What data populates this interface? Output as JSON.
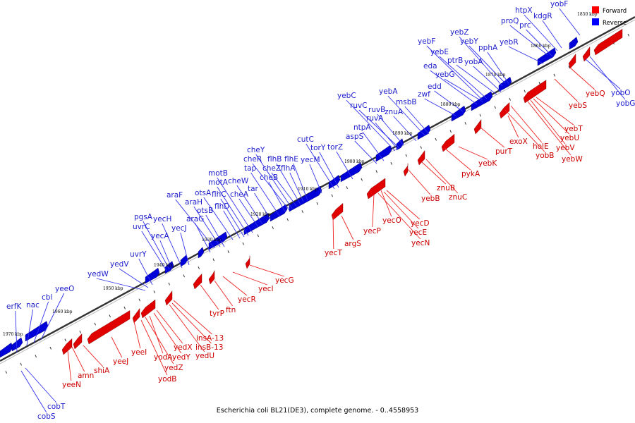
{
  "caption": "Escherichia coli BL21(DE3), complete genome. - 0..4558953",
  "legend": {
    "forward_label": "Forward",
    "reverse_label": "Reverse",
    "forward_color": "#ff0000",
    "reverse_color": "#0000ff"
  },
  "colors": {
    "forward": "#e00000",
    "reverse": "#0000d8",
    "label_forward": "#cc0000",
    "label_reverse": "#1c1ccc"
  },
  "kbp_labels": [
    "1850 kbp",
    "1860 kbp",
    "1870 kbp",
    "1880 kbp",
    "1890 kbp",
    "1900 kbp",
    "1910 kbp",
    "1920 kbp",
    "1930 kbp",
    "1940 kbp",
    "1950 kbp",
    "1960 kbp",
    "1970 kbp"
  ],
  "reverse_genes": [
    "yobF",
    "htpX",
    "kdgR",
    "proQ",
    "prc",
    "yebR",
    "yebZ",
    "yebY",
    "pphA",
    "yebF",
    "yebE",
    "ptrB",
    "yobA",
    "eda",
    "yebG",
    "edd",
    "zwf",
    "yebA",
    "msbB",
    "yebC",
    "ruvC",
    "ruvB",
    "znuA",
    "ruvA",
    "ntpA",
    "aspS",
    "cutC",
    "torY",
    "torZ",
    "cheY",
    "cheR",
    "tap",
    "cheZ",
    "flhB",
    "flhE",
    "flhA",
    "yecM",
    "cheB",
    "motB",
    "motA",
    "cheW",
    "tar",
    "araF",
    "araH",
    "otsA",
    "flhC",
    "cheA",
    "otsB",
    "flhD",
    "araG",
    "pgsA",
    "yecH",
    "uvrC",
    "yecJ",
    "yecA",
    "uvrY",
    "yedV",
    "yedW",
    "yeeO",
    "cbl",
    "nac",
    "erfK",
    "yobO",
    "yobG",
    "cobT",
    "cobS"
  ],
  "forward_genes": [
    "yebQ",
    "yebS",
    "yebT",
    "yebU",
    "yebV",
    "yebW",
    "holE",
    "yobB",
    "exoX",
    "purT",
    "yebK",
    "pykA",
    "znuB",
    "znuC",
    "yebB",
    "yecD",
    "yecO",
    "yecE",
    "yecN",
    "yecP",
    "argS",
    "yecT",
    "yecG",
    "yecI",
    "yecR",
    "ftn",
    "tyrP",
    "insA-13",
    "insB-13",
    "yedU",
    "yedX",
    "yedY",
    "yodA",
    "yedZ",
    "yodB",
    "yeeI",
    "yeeJ",
    "shiA",
    "amn",
    "yeeN"
  ]
}
